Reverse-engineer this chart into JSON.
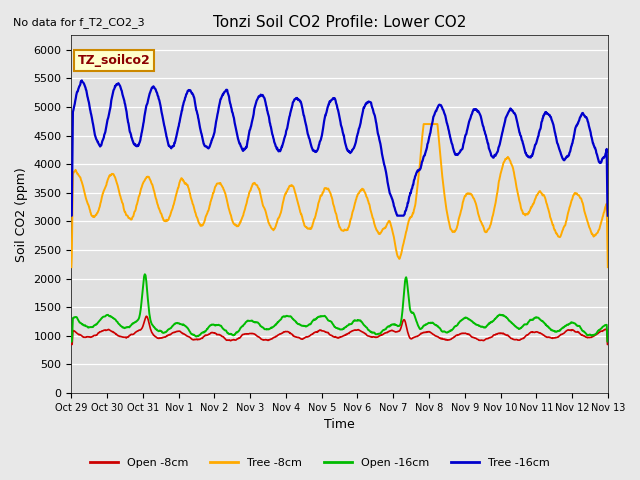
{
  "title": "Tonzi Soil CO2 Profile: Lower CO2",
  "annotation": "No data for f_T2_CO2_3",
  "xlabel": "Time",
  "ylabel": "Soil CO2 (ppm)",
  "ylim": [
    0,
    6250
  ],
  "yticks": [
    0,
    500,
    1000,
    1500,
    2000,
    2500,
    3000,
    3500,
    4000,
    4500,
    5000,
    5500,
    6000
  ],
  "fig_bg": "#e8e8e8",
  "plot_bg": "#e0e0e0",
  "legend_box_label": "TZ_soilco2",
  "legend_box_facecolor": "#ffffcc",
  "legend_box_edgecolor": "#cc8800",
  "colors": {
    "open_8cm": "#cc0000",
    "tree_8cm": "#ffaa00",
    "open_16cm": "#00bb00",
    "tree_16cm": "#0000cc"
  },
  "series_labels": [
    "Open -8cm",
    "Tree -8cm",
    "Open -16cm",
    "Tree -16cm"
  ],
  "x_tick_labels": [
    "Oct 29",
    "Oct 30",
    "Oct 31",
    "Nov 1",
    "Nov 2",
    "Nov 3",
    "Nov 4",
    "Nov 5",
    "Nov 6",
    "Nov 7",
    "Nov 8",
    "Nov 9",
    "Nov 10",
    "Nov 11",
    "Nov 12",
    "Nov 13"
  ]
}
